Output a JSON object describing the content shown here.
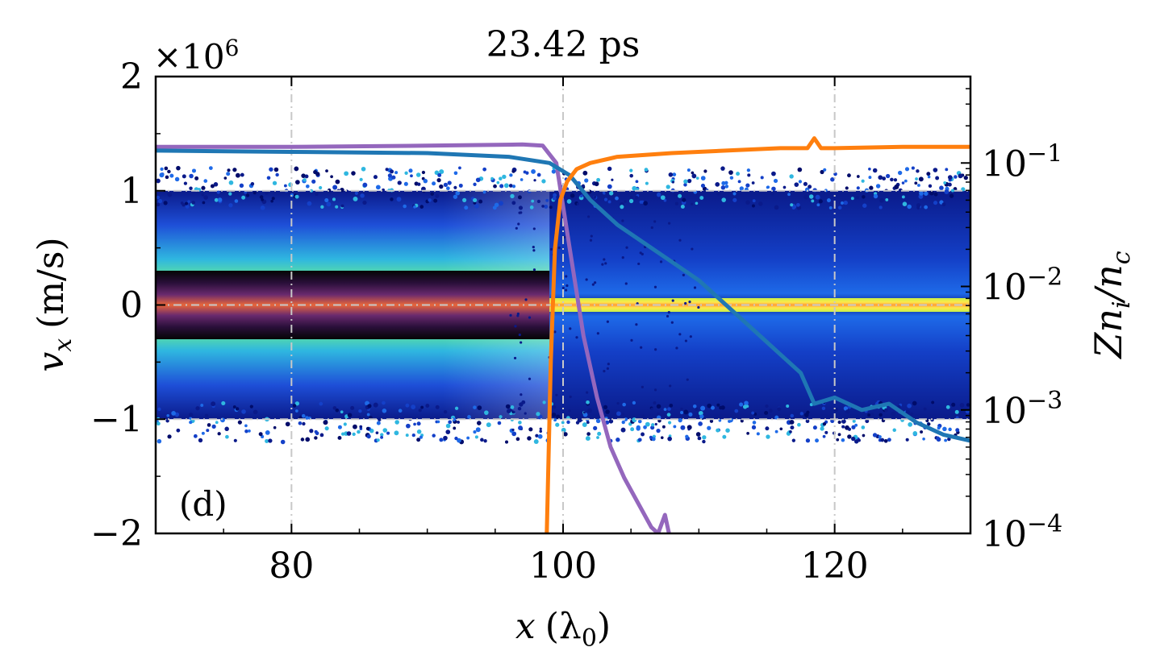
{
  "chart_data": {
    "type": "scatter",
    "title": "23.42 ps",
    "panel_label": "(d)",
    "xlabel_var": "x",
    "xlabel_unit": "(λ",
    "xlabel_sub": "0",
    "xlabel_close": ")",
    "ylabel_var": "v",
    "ylabel_sub": "x",
    "ylabel_unit": "(m/s)",
    "y2label_a": "Zn",
    "y2label_sub1": "i",
    "y2label_b": "/n",
    "y2label_sub2": "c",
    "y_multiplier_base": "×10",
    "y_multiplier_exp": "6",
    "xlim": [
      70,
      130
    ],
    "ylim": [
      -2,
      2
    ],
    "y2lim_log10": [
      -4,
      -0.3
    ],
    "x_ticks": [
      80,
      100,
      120
    ],
    "x_tick_labels": [
      "80",
      "100",
      "120"
    ],
    "y_ticks": [
      -2,
      -1,
      0,
      1,
      2
    ],
    "y_tick_labels": [
      "−2",
      "−1",
      "0",
      "1",
      "2"
    ],
    "y2_ticks_log10": [
      -4,
      -3,
      -2,
      -1
    ],
    "y2_tick_labels": [
      "10",
      "10",
      "10",
      "10"
    ],
    "y2_tick_exps": [
      "−4",
      "−3",
      "−2",
      "−1"
    ],
    "grid": true,
    "phase_space": {
      "description_units": "x in λ0, vx in 1e6 m/s",
      "upstream_region": {
        "x_range": [
          70,
          99
        ],
        "thermal_core_halfwidth": 0.3,
        "warm_band_halfwidth": 1.0
      },
      "downstream_region": {
        "x_range": [
          99,
          130
        ],
        "cold_core_halfwidth": 0.06,
        "halo_halfwidth": 1.0
      }
    },
    "series": [
      {
        "name": "purple density",
        "color": "#9467bd",
        "x": [
          70,
          80,
          90,
          97,
          98.5,
          99.5,
          100.5,
          101.5,
          102.5,
          103.5,
          104.5,
          105.5,
          106.5,
          107,
          107.5,
          107.8
        ],
        "y_log10": [
          -0.87,
          -0.87,
          -0.86,
          -0.85,
          -0.86,
          -1.0,
          -1.7,
          -2.4,
          -2.9,
          -3.3,
          -3.55,
          -3.75,
          -3.95,
          -4.0,
          -3.85,
          -4.0
        ]
      },
      {
        "name": "blue density",
        "color": "#1f77b4",
        "x": [
          70,
          80,
          90,
          96,
          99,
          100.5,
          102,
          104,
          106,
          108,
          110,
          112,
          114,
          116,
          117.5,
          118.5,
          120,
          122,
          124,
          126,
          128,
          130
        ],
        "y_log10": [
          -0.9,
          -0.91,
          -0.92,
          -0.95,
          -1.0,
          -1.1,
          -1.3,
          -1.5,
          -1.65,
          -1.8,
          -1.95,
          -2.15,
          -2.35,
          -2.55,
          -2.7,
          -2.95,
          -2.9,
          -3.0,
          -2.95,
          -3.1,
          -3.2,
          -3.25
        ]
      },
      {
        "name": "orange density",
        "color": "#ff7f0e",
        "x": [
          98.8,
          99.1,
          99.4,
          99.8,
          100.3,
          101,
          102,
          104,
          108,
          112,
          116,
          118,
          118.5,
          119,
          120,
          125,
          130
        ],
        "y_log10": [
          -4.0,
          -2.6,
          -1.7,
          -1.3,
          -1.15,
          -1.05,
          -1.0,
          -0.95,
          -0.92,
          -0.9,
          -0.88,
          -0.88,
          -0.8,
          -0.88,
          -0.88,
          -0.87,
          -0.87
        ]
      }
    ]
  }
}
